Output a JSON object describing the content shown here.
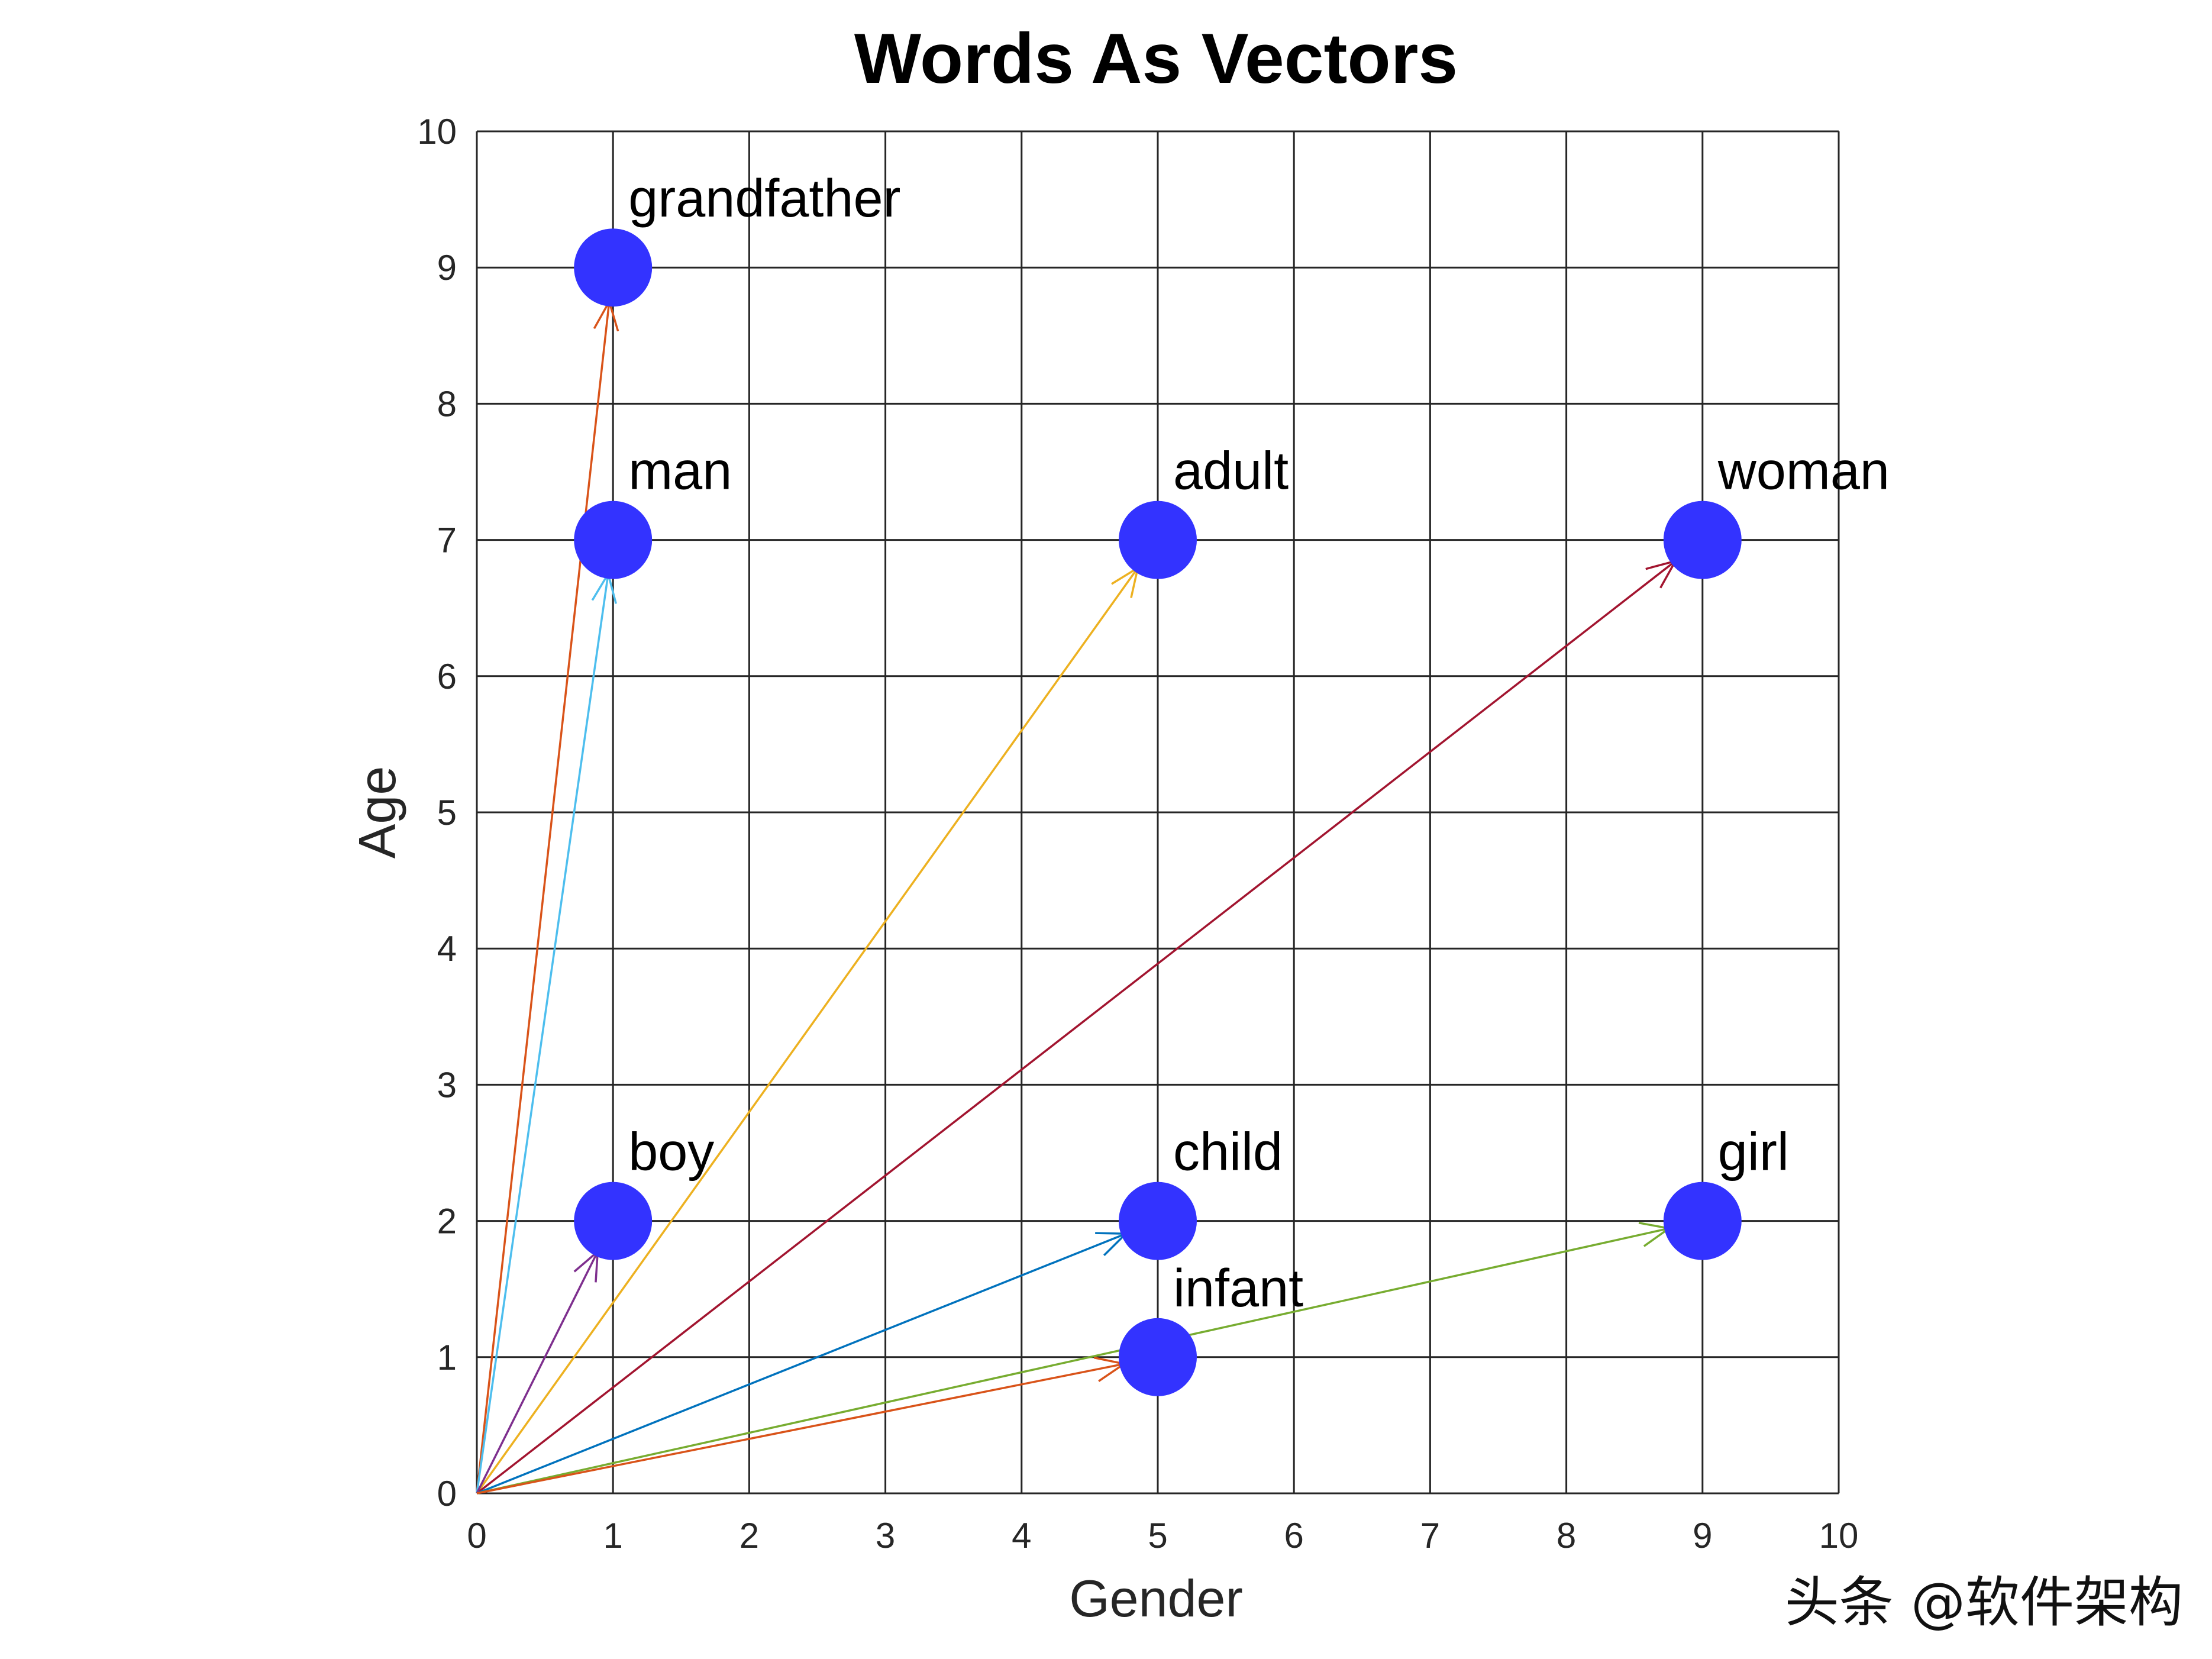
{
  "chart_data": {
    "type": "scatter",
    "title": "Words As Vectors",
    "xlabel": "Gender",
    "ylabel": "Age",
    "xlim": [
      0,
      10
    ],
    "ylim": [
      0,
      10
    ],
    "xticks": [
      "0",
      "1",
      "2",
      "3",
      "4",
      "5",
      "6",
      "7",
      "8",
      "9",
      "10"
    ],
    "yticks": [
      "0",
      "1",
      "2",
      "3",
      "4",
      "5",
      "6",
      "7",
      "8",
      "9",
      "10"
    ],
    "grid": true,
    "point_color": "#3333ff",
    "points": [
      {
        "word": "grandfather",
        "x": 1,
        "y": 9
      },
      {
        "word": "man",
        "x": 1,
        "y": 7
      },
      {
        "word": "adult",
        "x": 5,
        "y": 7
      },
      {
        "word": "woman",
        "x": 9,
        "y": 7
      },
      {
        "word": "boy",
        "x": 1,
        "y": 2
      },
      {
        "word": "child",
        "x": 5,
        "y": 2
      },
      {
        "word": "girl",
        "x": 9,
        "y": 2
      },
      {
        "word": "infant",
        "x": 5,
        "y": 1
      }
    ],
    "vectors": [
      {
        "to": "grandfather",
        "x": 1,
        "y": 9,
        "color": "#d95319"
      },
      {
        "to": "man",
        "x": 1,
        "y": 7,
        "color": "#4dbeee"
      },
      {
        "to": "adult",
        "x": 5,
        "y": 7,
        "color": "#edb120"
      },
      {
        "to": "woman",
        "x": 9,
        "y": 7,
        "color": "#a2142f"
      },
      {
        "to": "boy",
        "x": 1,
        "y": 2,
        "color": "#7e2f8e"
      },
      {
        "to": "child",
        "x": 5,
        "y": 2,
        "color": "#0072bd"
      },
      {
        "to": "girl",
        "x": 9,
        "y": 2,
        "color": "#77ac30"
      },
      {
        "to": "infant",
        "x": 5,
        "y": 1,
        "color": "#d95319"
      }
    ]
  },
  "watermark": "头条 @软件架构"
}
